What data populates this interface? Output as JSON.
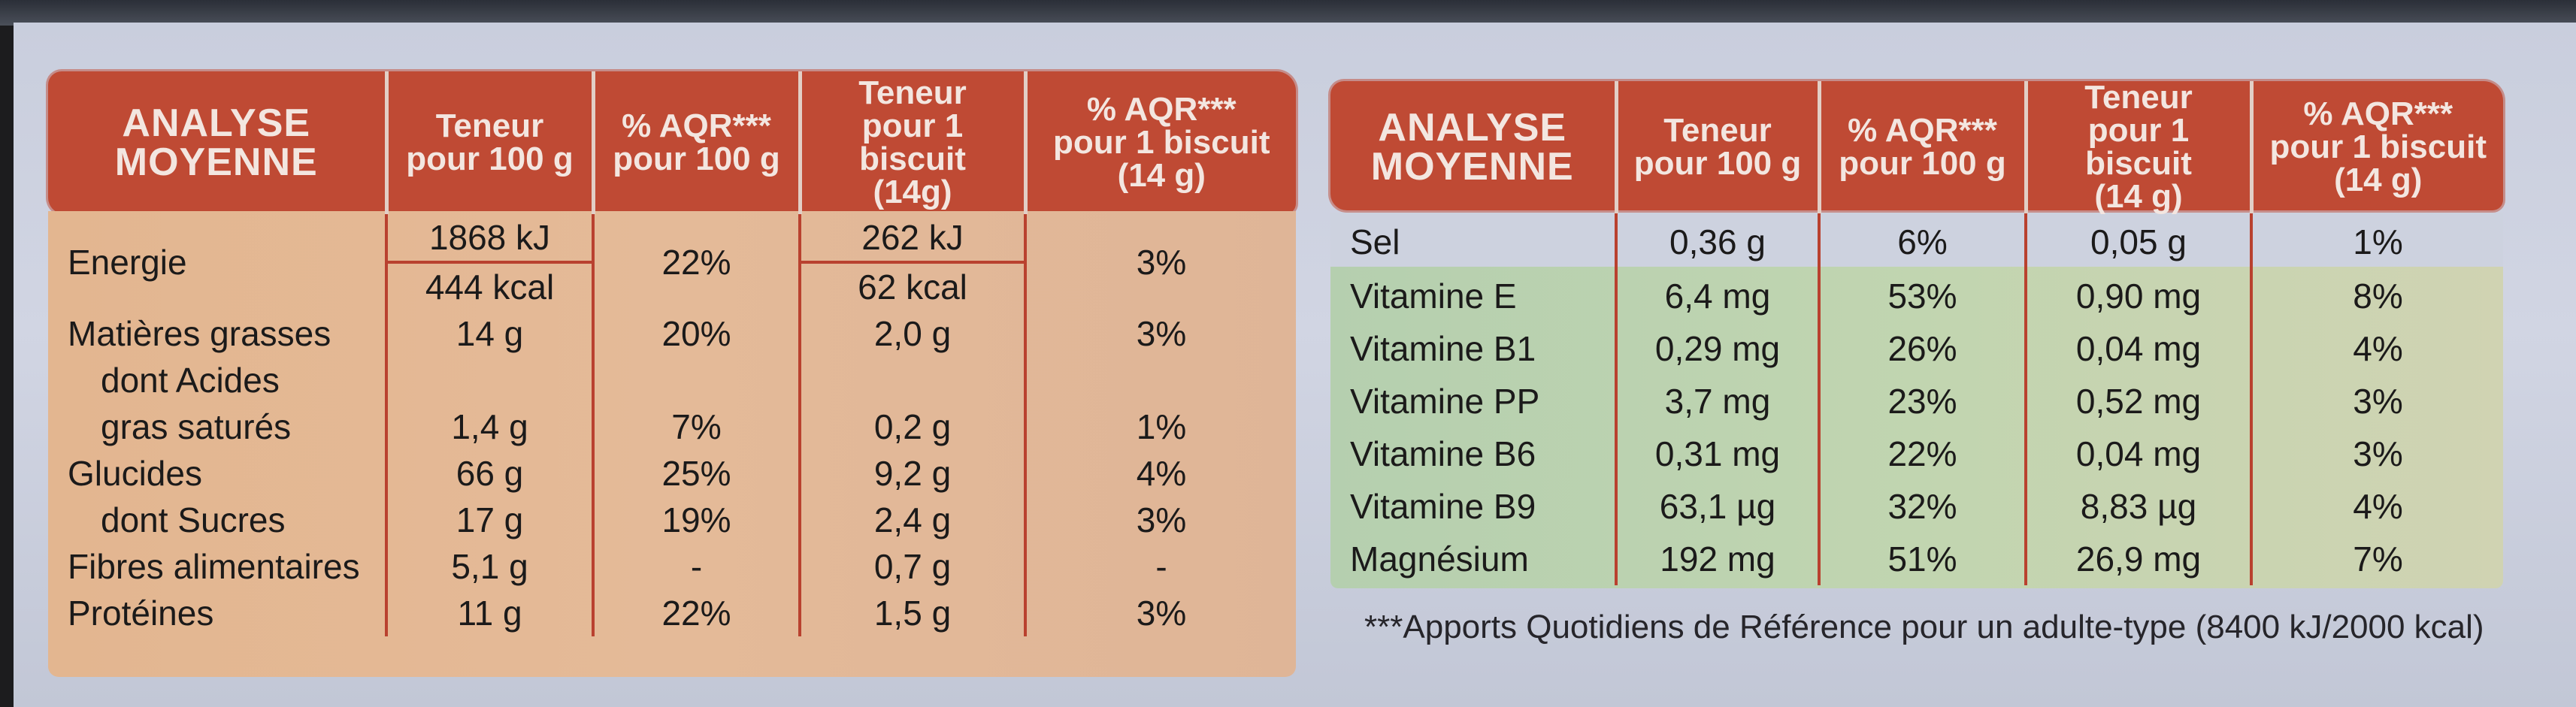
{
  "left_table": {
    "headers": {
      "analyse": [
        "ANALYSE",
        "MOYENNE"
      ],
      "col1": [
        "Teneur",
        "pour 100 g"
      ],
      "col2": [
        "% AQR***",
        "pour 100 g"
      ],
      "col3": [
        "Teneur",
        "pour 1 biscuit",
        "(14g)"
      ],
      "col4": [
        "% AQR***",
        "pour 1 biscuit",
        "(14 g)"
      ]
    },
    "energie": {
      "label": "Energie",
      "teneur_100_kj": "1868 kJ",
      "teneur_100_kcal": "444 kcal",
      "aqr_100": "22%",
      "teneur_biscuit_kj": "262 kJ",
      "teneur_biscuit_kcal": "62 kcal",
      "aqr_biscuit": "3%"
    },
    "rows": [
      {
        "label": "Matières grasses",
        "t100": "14 g",
        "a100": "20%",
        "tb": "2,0 g",
        "ab": "3%"
      },
      {
        "label": "dont Acides",
        "t100": "",
        "a100": "",
        "tb": "",
        "ab": ""
      },
      {
        "label": "gras saturés",
        "t100": "1,4 g",
        "a100": "7%",
        "tb": "0,2 g",
        "ab": "1%"
      },
      {
        "label": "Glucides",
        "t100": "66 g",
        "a100": "25%",
        "tb": "9,2 g",
        "ab": "4%"
      },
      {
        "label": "dont Sucres",
        "t100": "17 g",
        "a100": "19%",
        "tb": "2,4 g",
        "ab": "3%"
      },
      {
        "label": "Fibres alimentaires",
        "t100": "5,1 g",
        "a100": "-",
        "tb": "0,7 g",
        "ab": "-"
      },
      {
        "label": "Protéines",
        "t100": "11 g",
        "a100": "22%",
        "tb": "1,5 g",
        "ab": "3%"
      }
    ]
  },
  "right_table": {
    "headers": {
      "analyse": [
        "ANALYSE",
        "MOYENNE"
      ],
      "col1": [
        "Teneur",
        "pour 100 g"
      ],
      "col2": [
        "% AQR***",
        "pour 100 g"
      ],
      "col3": [
        "Teneur",
        "pour 1 biscuit",
        "(14 g)"
      ],
      "col4": [
        "% AQR***",
        "pour 1 biscuit",
        "(14 g)"
      ]
    },
    "rows": [
      {
        "label": "Sel",
        "t100": "0,36 g",
        "a100": "6%",
        "tb": "0,05 g",
        "ab": "1%"
      },
      {
        "label": "Vitamine E",
        "t100": "6,4 mg",
        "a100": "53%",
        "tb": "0,90 mg",
        "ab": "8%"
      },
      {
        "label": "Vitamine B1",
        "t100": "0,29 mg",
        "a100": "26%",
        "tb": "0,04 mg",
        "ab": "4%"
      },
      {
        "label": "Vitamine PP",
        "t100": "3,7 mg",
        "a100": "23%",
        "tb": "0,52 mg",
        "ab": "3%"
      },
      {
        "label": "Vitamine B6",
        "t100": "0,31 mg",
        "a100": "22%",
        "tb": "0,04 mg",
        "ab": "3%"
      },
      {
        "label": "Vitamine B9",
        "t100": "63,1 µg",
        "a100": "32%",
        "tb": "8,83 µg",
        "ab": "4%"
      },
      {
        "label": "Magnésium",
        "t100": "192 mg",
        "a100": "51%",
        "tb": "26,9 mg",
        "ab": "7%"
      }
    ]
  },
  "footnote": "***Apports Quotidiens de Référence pour un adulte-type (8400 kJ/2000 kcal)",
  "colors": {
    "header_red": "#bf4a34",
    "body_peach": "#e3b690",
    "body_green": "#b5cfaf",
    "panel": "#c9cedd",
    "rule_red": "#b9412f"
  }
}
